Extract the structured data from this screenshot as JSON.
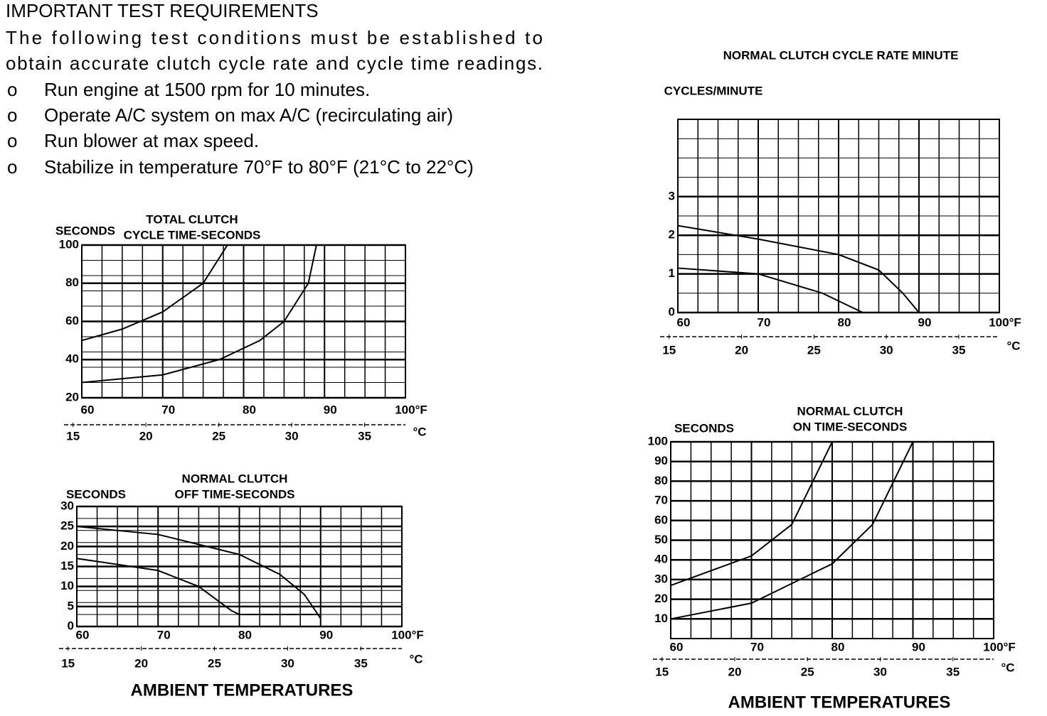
{
  "header": {
    "title": "IMPORTANT TEST REQUIREMENTS",
    "lines": [
      "The following test conditions must be established to",
      "obtain accurate clutch cycle rate and cycle time readings."
    ],
    "bullet": "o",
    "bullets": [
      "Run engine at 1500 rpm for 10 minutes.",
      "Operate A/C system on max A/C (recirculating air)",
      "Run blower at max speed.",
      "Stabilize in temperature 70°F to 80°F (21°C to 22°C)"
    ]
  },
  "footers": [
    "AMBIENT TEMPERATURES",
    "AMBIENT TEMPERATURES"
  ],
  "chart_data": [
    {
      "type": "line",
      "title": [
        "TOTAL CLUTCH",
        "CYCLE TIME-SECONDS"
      ],
      "ylabel": "SECONDS",
      "xlim": [
        60,
        100
      ],
      "xticks": [
        60,
        70,
        80,
        90,
        {
          "value": 100,
          "label": "100°F"
        }
      ],
      "x2lim": [
        15.6,
        37.8
      ],
      "x2ticks": [
        15,
        20,
        25,
        30,
        35
      ],
      "x2label": "°C",
      "ylim": [
        20,
        100
      ],
      "yticks": [
        20,
        40,
        60,
        80,
        100
      ],
      "grid": true,
      "series": [
        {
          "color": "#000000",
          "x": [
            60,
            65,
            70,
            75,
            78
          ],
          "values": [
            50,
            56,
            65,
            80,
            100
          ]
        },
        {
          "color": "#000000",
          "x": [
            60,
            70,
            77,
            82,
            85,
            88,
            89
          ],
          "values": [
            28,
            32,
            40,
            50,
            60,
            80,
            100
          ]
        }
      ]
    },
    {
      "type": "line",
      "title": [
        "NORMAL CLUTCH",
        "OFF TIME-SECONDS"
      ],
      "ylabel": "SECONDS",
      "xlim": [
        60,
        100
      ],
      "xticks": [
        60,
        70,
        80,
        90,
        {
          "value": 100,
          "label": "100°F"
        }
      ],
      "x2lim": [
        15.6,
        37.8
      ],
      "x2ticks": [
        15,
        20,
        25,
        30,
        35
      ],
      "x2label": "°C",
      "ylim": [
        0,
        30
      ],
      "yticks": [
        0,
        5,
        10,
        15,
        20,
        25,
        30
      ],
      "grid": true,
      "series": [
        {
          "color": "#000000",
          "x": [
            60,
            70,
            80,
            85,
            88,
            90
          ],
          "values": [
            25,
            23,
            18,
            13,
            8,
            2
          ]
        },
        {
          "color": "#000000",
          "x": [
            60,
            70,
            75,
            79,
            80,
            90
          ],
          "values": [
            17,
            14,
            10,
            4,
            3,
            3
          ]
        }
      ]
    },
    {
      "type": "line",
      "title": [
        "NORMAL CLUTCH CYCLE RATE MINUTE"
      ],
      "ylabel": "CYCLES/MINUTE",
      "xlim": [
        60,
        100
      ],
      "xticks": [
        60,
        70,
        80,
        90,
        {
          "value": 100,
          "label": "100°F"
        }
      ],
      "x2lim": [
        15.6,
        37.8
      ],
      "x2ticks": [
        15,
        20,
        25,
        30,
        35
      ],
      "x2label": "°C",
      "ylim": [
        0,
        5
      ],
      "yticks": [
        0,
        1,
        2,
        3
      ],
      "grid": true,
      "series": [
        {
          "color": "#000000",
          "x": [
            60,
            70,
            80,
            85,
            88,
            90
          ],
          "values": [
            2.25,
            1.9,
            1.5,
            1.1,
            0.5,
            0
          ]
        },
        {
          "color": "#000000",
          "x": [
            60,
            70,
            78,
            83
          ],
          "values": [
            1.15,
            1.0,
            0.5,
            0
          ]
        }
      ]
    },
    {
      "type": "line",
      "title": [
        "NORMAL CLUTCH",
        "ON TIME-SECONDS"
      ],
      "ylabel": "SECONDS",
      "xlim": [
        60,
        100
      ],
      "xticks": [
        60,
        70,
        80,
        90,
        {
          "value": 100,
          "label": "100°F"
        }
      ],
      "x2lim": [
        15.6,
        37.8
      ],
      "x2ticks": [
        15,
        20,
        25,
        30,
        35
      ],
      "x2label": "°C",
      "ylim": [
        0,
        100
      ],
      "yticks": [
        10,
        20,
        30,
        40,
        50,
        60,
        70,
        80,
        90,
        100
      ],
      "grid": true,
      "series": [
        {
          "color": "#000000",
          "x": [
            60,
            70,
            75,
            80
          ],
          "values": [
            27,
            42,
            58,
            100
          ]
        },
        {
          "color": "#000000",
          "x": [
            60,
            70,
            80,
            85,
            90
          ],
          "values": [
            10,
            18,
            38,
            58,
            100
          ]
        }
      ]
    }
  ]
}
